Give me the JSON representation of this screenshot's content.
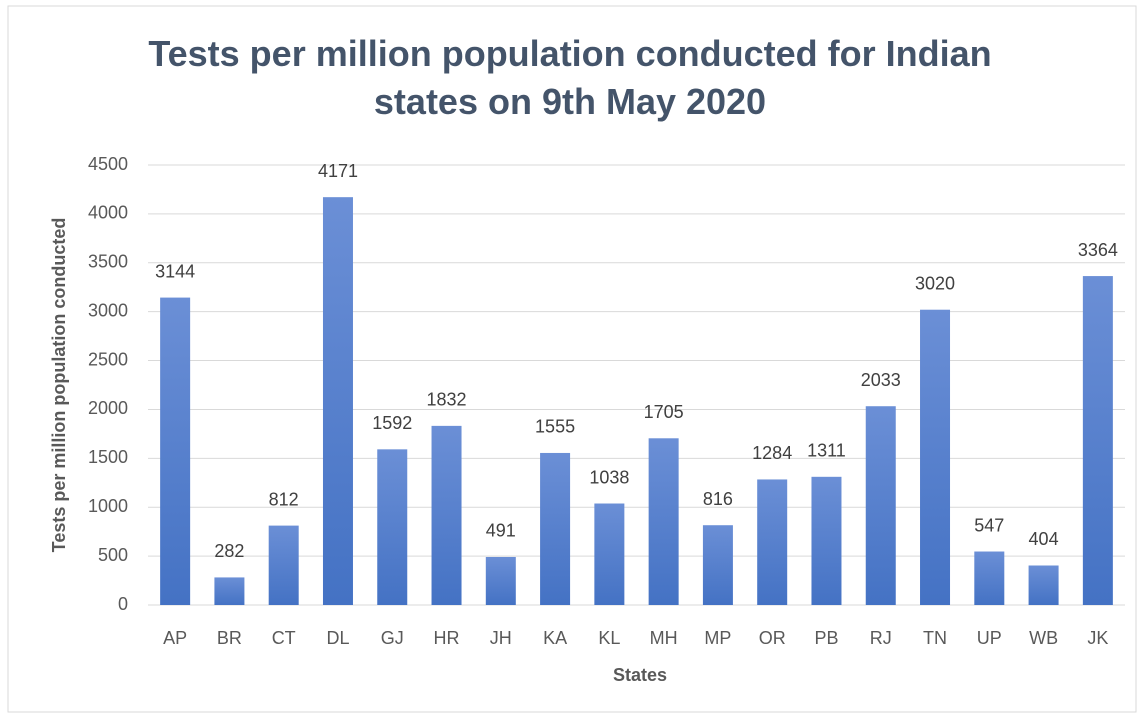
{
  "chart_data": {
    "type": "bar",
    "title": "Tests per million population conducted for Indian states on 9th May 2020",
    "x_label": "States",
    "y_label": "Tests per million population conducted",
    "categories": [
      "AP",
      "BR",
      "CT",
      "DL",
      "GJ",
      "HR",
      "JH",
      "KA",
      "KL",
      "MH",
      "MP",
      "OR",
      "PB",
      "RJ",
      "TN",
      "UP",
      "WB",
      "JK"
    ],
    "values": [
      3144,
      282,
      812,
      4171,
      1592,
      1832,
      491,
      1555,
      1038,
      1705,
      816,
      1284,
      1311,
      2033,
      3020,
      547,
      404,
      3364
    ],
    "color": "#4472c4",
    "ylim": [
      0,
      4500
    ],
    "yticks": [
      0,
      500,
      1000,
      1500,
      2000,
      2500,
      3000,
      3500,
      4000,
      4500
    ],
    "grid": true
  }
}
